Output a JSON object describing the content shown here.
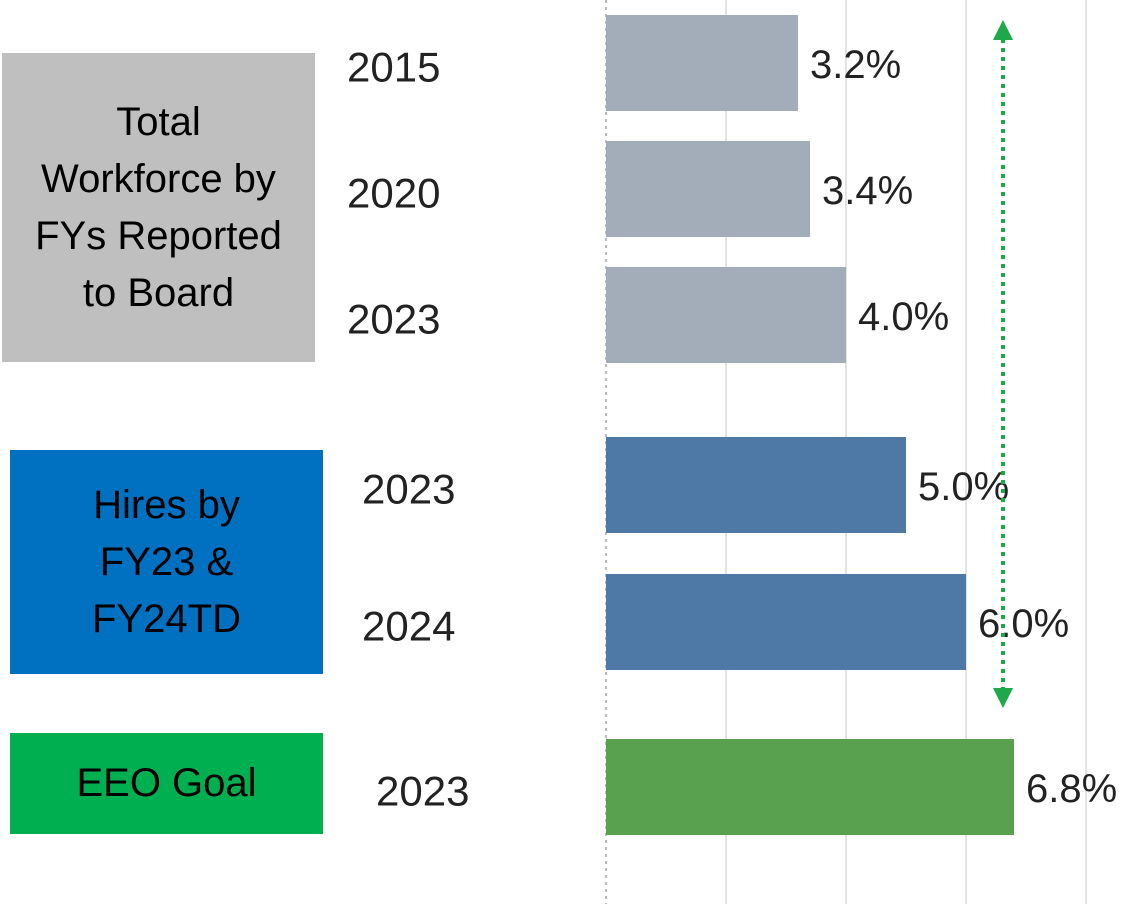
{
  "chart_data": {
    "type": "bar",
    "orientation": "horizontal",
    "xlim": [
      0,
      8.7
    ],
    "xticks": [
      0,
      2,
      4,
      6,
      8
    ],
    "grid": true,
    "series": [
      {
        "name": "Total Workforce by FYs Reported to Board",
        "label_color": "#bfbfbf",
        "color": "#a3acb9",
        "categories": [
          "2015",
          "2020",
          "2023"
        ],
        "values": [
          3.2,
          3.4,
          4.0
        ],
        "value_labels": [
          "3.2%",
          "3.4%",
          "4.0%"
        ]
      },
      {
        "name": "Hires by FY23 & FY24TD",
        "label_color": "#0070c0",
        "color": "#4e79a7",
        "categories": [
          "2023",
          "2024"
        ],
        "values": [
          5.0,
          6.0
        ],
        "value_labels": [
          "5.0%",
          "6.0%"
        ]
      },
      {
        "name": "EEO Goal",
        "label_color": "#00b050",
        "color": "#59a14f",
        "categories": [
          "2023"
        ],
        "values": [
          6.8
        ],
        "value_labels": [
          "6.8%"
        ]
      }
    ]
  }
}
